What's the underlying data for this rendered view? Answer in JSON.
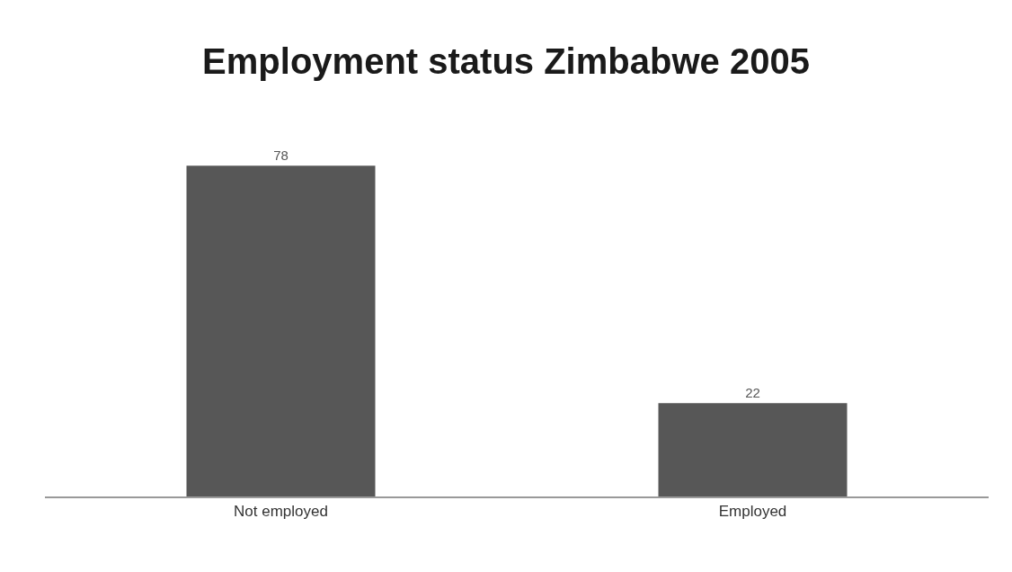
{
  "chart_data": {
    "type": "bar",
    "title": "Employment status Zimbabwe 2005",
    "categories": [
      "Not employed",
      "Employed"
    ],
    "values": [
      78,
      22
    ],
    "color": "#575757",
    "tick_labels": "x",
    "data_labels": true
  }
}
